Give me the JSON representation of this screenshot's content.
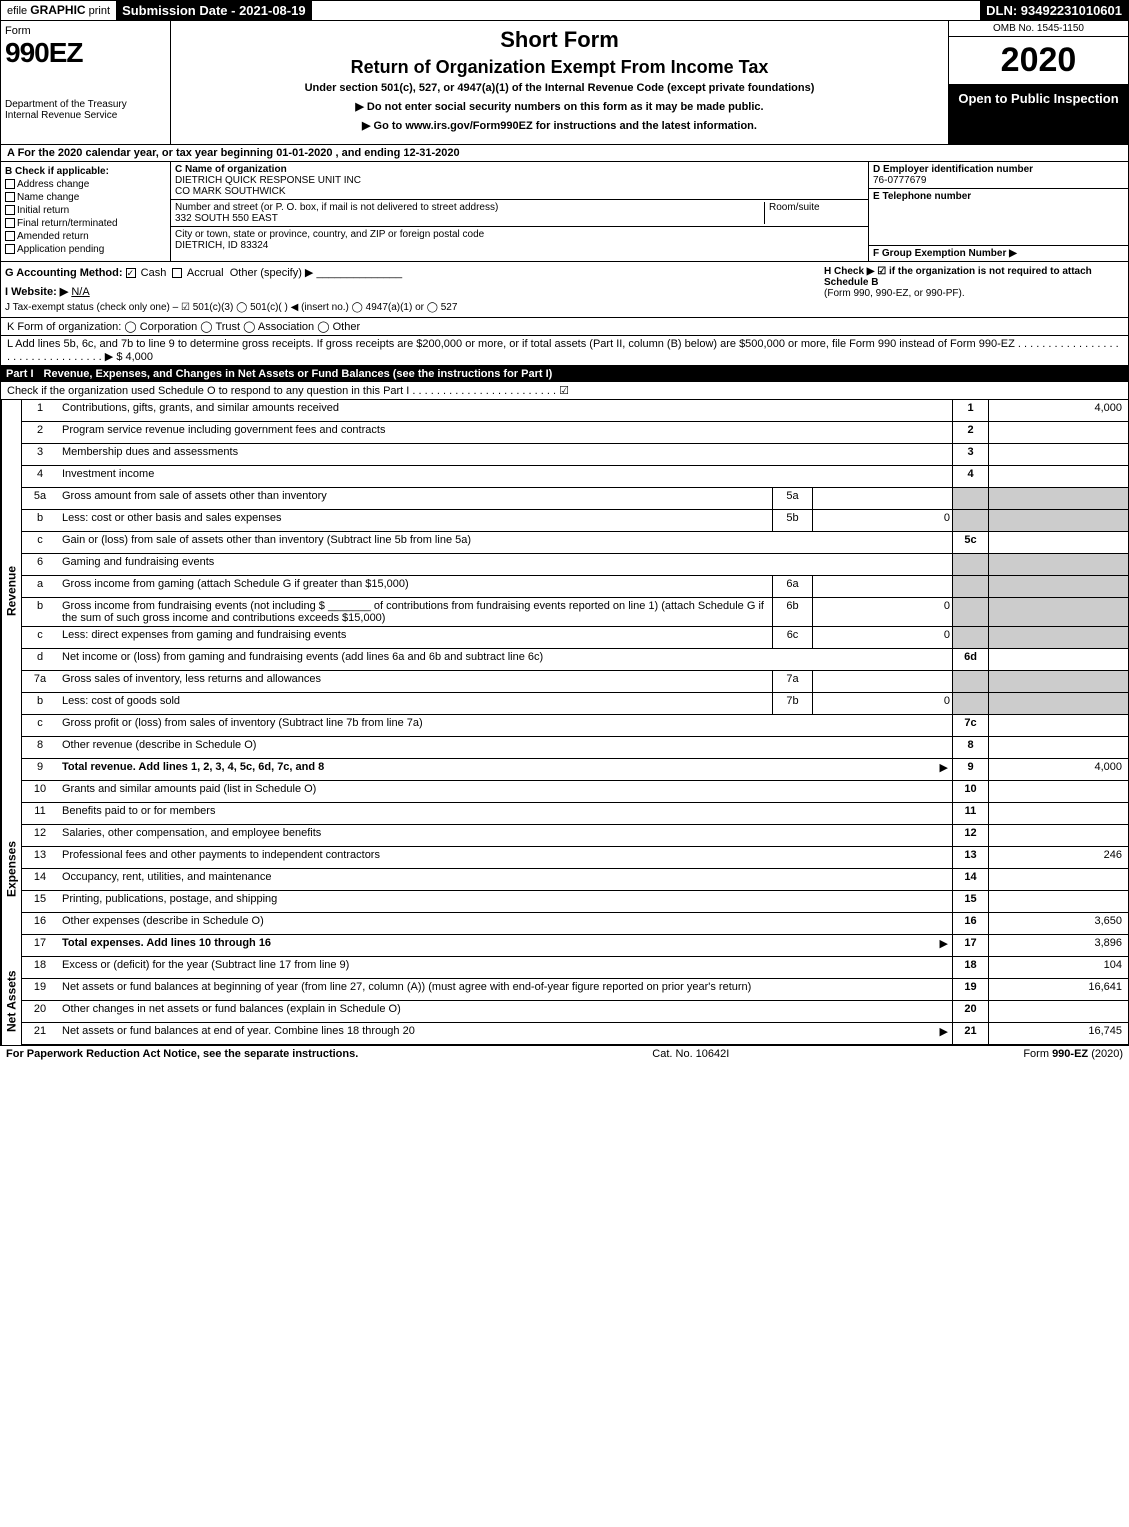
{
  "topbar": {
    "efile_prefix": "efile ",
    "efile_graphic": "GRAPHIC",
    "efile_print": " print",
    "submission_label": "Submission Date - 2021-08-19",
    "dln": "DLN: 93492231010601"
  },
  "header": {
    "form_label": "Form",
    "form_number": "990EZ",
    "dept": "Department of the Treasury",
    "irs": "Internal Revenue Service",
    "short_form": "Short Form",
    "return_title": "Return of Organization Exempt From Income Tax",
    "under_section": "Under section 501(c), 527, or 4947(a)(1) of the Internal Revenue Code (except private foundations)",
    "ssn_warning": "▶ Do not enter social security numbers on this form as it may be made public.",
    "goto": "▶ Go to www.irs.gov/Form990EZ for instructions and the latest information.",
    "omb": "OMB No. 1545-1150",
    "year": "2020",
    "open": "Open to Public Inspection"
  },
  "line_a": "A For the 2020 calendar year, or tax year beginning 01-01-2020 , and ending 12-31-2020",
  "box_b": {
    "title": "B Check if applicable:",
    "opts": [
      "Address change",
      "Name change",
      "Initial return",
      "Final return/terminated",
      "Amended return",
      "Application pending"
    ]
  },
  "box_c": {
    "label": "C Name of organization",
    "name": "DIETRICH QUICK RESPONSE UNIT INC",
    "co": "CO MARK SOUTHWICK",
    "street_label": "Number and street (or P. O. box, if mail is not delivered to street address)",
    "street": "332 SOUTH 550 EAST",
    "room_label": "Room/suite",
    "city_label": "City or town, state or province, country, and ZIP or foreign postal code",
    "city": "DIETRICH, ID  83324"
  },
  "box_d": {
    "label": "D Employer identification number",
    "ein": "76-0777679"
  },
  "box_e": {
    "label": "E Telephone number",
    "val": ""
  },
  "box_f": {
    "label": "F Group Exemption Number ▶",
    "val": ""
  },
  "line_g": {
    "label": "G Accounting Method:",
    "cash": "Cash",
    "accrual": "Accrual",
    "other": "Other (specify) ▶"
  },
  "line_h": {
    "label": "H Check ▶ ☑ if the organization is not required to attach Schedule B",
    "sub": "(Form 990, 990-EZ, or 990-PF)."
  },
  "line_i": {
    "label": "I Website: ▶",
    "val": "N/A"
  },
  "line_j": "J Tax-exempt status (check only one) – ☑ 501(c)(3)  ◯ 501(c)(  ) ◀ (insert no.)  ◯ 4947(a)(1) or  ◯ 527",
  "line_k": "K Form of organization:   ◯ Corporation   ◯ Trust   ◯ Association   ◯ Other",
  "line_l": "L Add lines 5b, 6c, and 7b to line 9 to determine gross receipts. If gross receipts are $200,000 or more, or if total assets (Part II, column (B) below) are $500,000 or more, file Form 990 instead of Form 990-EZ . . . . . . . . . . . . . . . . . . . . . . . . . . . . . . . . . ▶ $ 4,000",
  "part1": {
    "label": "Part I",
    "title": "Revenue, Expenses, and Changes in Net Assets or Fund Balances (see the instructions for Part I)",
    "check": "Check if the organization used Schedule O to respond to any question in this Part I . . . . . . . . . . . . . . . . . . . . . . . . ☑"
  },
  "sections": {
    "revenue": "Revenue",
    "expenses": "Expenses",
    "netassets": "Net Assets"
  },
  "rows": [
    {
      "n": "1",
      "desc": "Contributions, gifts, grants, and similar amounts received",
      "ln": "1",
      "val": "4,000"
    },
    {
      "n": "2",
      "desc": "Program service revenue including government fees and contracts",
      "ln": "2",
      "val": ""
    },
    {
      "n": "3",
      "desc": "Membership dues and assessments",
      "ln": "3",
      "val": ""
    },
    {
      "n": "4",
      "desc": "Investment income",
      "ln": "4",
      "val": ""
    },
    {
      "n": "5a",
      "desc": "Gross amount from sale of assets other than inventory",
      "sub": "5a",
      "subval": ""
    },
    {
      "n": "b",
      "desc": "Less: cost or other basis and sales expenses",
      "sub": "5b",
      "subval": "0"
    },
    {
      "n": "c",
      "desc": "Gain or (loss) from sale of assets other than inventory (Subtract line 5b from line 5a)",
      "ln": "5c",
      "val": ""
    },
    {
      "n": "6",
      "desc": "Gaming and fundraising events"
    },
    {
      "n": "a",
      "desc": "Gross income from gaming (attach Schedule G if greater than $15,000)",
      "sub": "6a",
      "subval": ""
    },
    {
      "n": "b",
      "desc": "Gross income from fundraising events (not including $ _______ of contributions from fundraising events reported on line 1) (attach Schedule G if the sum of such gross income and contributions exceeds $15,000)",
      "sub": "6b",
      "subval": "0"
    },
    {
      "n": "c",
      "desc": "Less: direct expenses from gaming and fundraising events",
      "sub": "6c",
      "subval": "0"
    },
    {
      "n": "d",
      "desc": "Net income or (loss) from gaming and fundraising events (add lines 6a and 6b and subtract line 6c)",
      "ln": "6d",
      "val": ""
    },
    {
      "n": "7a",
      "desc": "Gross sales of inventory, less returns and allowances",
      "sub": "7a",
      "subval": ""
    },
    {
      "n": "b",
      "desc": "Less: cost of goods sold",
      "sub": "7b",
      "subval": "0"
    },
    {
      "n": "c",
      "desc": "Gross profit or (loss) from sales of inventory (Subtract line 7b from line 7a)",
      "ln": "7c",
      "val": ""
    },
    {
      "n": "8",
      "desc": "Other revenue (describe in Schedule O)",
      "ln": "8",
      "val": ""
    },
    {
      "n": "9",
      "desc": "Total revenue. Add lines 1, 2, 3, 4, 5c, 6d, 7c, and 8",
      "ln": "9",
      "val": "4,000",
      "bold": true,
      "arrow": true
    }
  ],
  "exp_rows": [
    {
      "n": "10",
      "desc": "Grants and similar amounts paid (list in Schedule O)",
      "ln": "10",
      "val": ""
    },
    {
      "n": "11",
      "desc": "Benefits paid to or for members",
      "ln": "11",
      "val": ""
    },
    {
      "n": "12",
      "desc": "Salaries, other compensation, and employee benefits",
      "ln": "12",
      "val": ""
    },
    {
      "n": "13",
      "desc": "Professional fees and other payments to independent contractors",
      "ln": "13",
      "val": "246"
    },
    {
      "n": "14",
      "desc": "Occupancy, rent, utilities, and maintenance",
      "ln": "14",
      "val": ""
    },
    {
      "n": "15",
      "desc": "Printing, publications, postage, and shipping",
      "ln": "15",
      "val": ""
    },
    {
      "n": "16",
      "desc": "Other expenses (describe in Schedule O)",
      "ln": "16",
      "val": "3,650"
    },
    {
      "n": "17",
      "desc": "Total expenses. Add lines 10 through 16",
      "ln": "17",
      "val": "3,896",
      "bold": true,
      "arrow": true
    }
  ],
  "na_rows": [
    {
      "n": "18",
      "desc": "Excess or (deficit) for the year (Subtract line 17 from line 9)",
      "ln": "18",
      "val": "104"
    },
    {
      "n": "19",
      "desc": "Net assets or fund balances at beginning of year (from line 27, column (A)) (must agree with end-of-year figure reported on prior year's return)",
      "ln": "19",
      "val": "16,641"
    },
    {
      "n": "20",
      "desc": "Other changes in net assets or fund balances (explain in Schedule O)",
      "ln": "20",
      "val": ""
    },
    {
      "n": "21",
      "desc": "Net assets or fund balances at end of year. Combine lines 18 through 20",
      "ln": "21",
      "val": "16,745",
      "arrow": true
    }
  ],
  "footer": {
    "left": "For Paperwork Reduction Act Notice, see the separate instructions.",
    "mid": "Cat. No. 10642I",
    "right": "Form 990-EZ (2020)"
  },
  "colors": {
    "black": "#000000",
    "white": "#ffffff",
    "shade": "#cccccc"
  }
}
